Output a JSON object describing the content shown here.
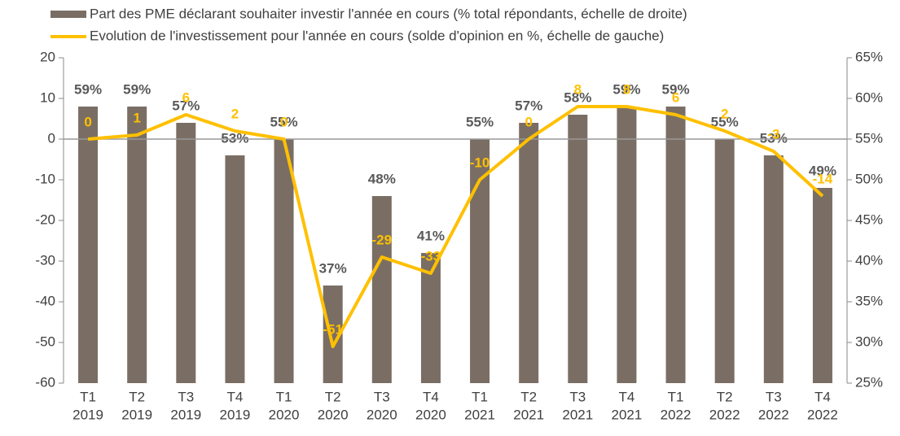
{
  "chart_data": {
    "type": "bar_line",
    "categories": [
      [
        "T1",
        "2019"
      ],
      [
        "T2",
        "2019"
      ],
      [
        "T3",
        "2019"
      ],
      [
        "T4",
        "2019"
      ],
      [
        "T1",
        "2020"
      ],
      [
        "T2",
        "2020"
      ],
      [
        "T3",
        "2020"
      ],
      [
        "T4",
        "2020"
      ],
      [
        "T1",
        "2021"
      ],
      [
        "T2",
        "2021"
      ],
      [
        "T3",
        "2021"
      ],
      [
        "T4",
        "2021"
      ],
      [
        "T1",
        "2022"
      ],
      [
        "T2",
        "2022"
      ],
      [
        "T3",
        "2022"
      ],
      [
        "T4",
        "2022"
      ]
    ],
    "series": [
      {
        "name": "Part des PME déclarant souhaiter investir l'année en cours (% total répondants, échelle de droite)",
        "color": "#7a6e64",
        "axis": "y2",
        "values": [
          59,
          59,
          57,
          53,
          55,
          37,
          48,
          41,
          55,
          57,
          58,
          59,
          59,
          55,
          53,
          49
        ],
        "value_labels": [
          "59%",
          "59%",
          "57%",
          "53%",
          "55%",
          "37%",
          "48%",
          "41%",
          "55%",
          "57%",
          "58%",
          "59%",
          "59%",
          "55%",
          "53%",
          "49%"
        ]
      },
      {
        "name": "Evolution de l'investissement pour l'année en cours (solde d'opinion en %, échelle de gauche)",
        "color": "#ffc000",
        "values": [
          0,
          1,
          6,
          2,
          0,
          -51,
          -29,
          -33,
          -10,
          0,
          8,
          8,
          6,
          2,
          -3,
          -14
        ]
      }
    ],
    "ylim": [
      -60,
      20
    ],
    "yticks": [
      -60,
      -50,
      -40,
      -30,
      -20,
      -10,
      0,
      10,
      20
    ],
    "y2lim": [
      25,
      65
    ],
    "y2ticks": [
      {
        "value": 25,
        "label": "25%"
      },
      {
        "value": 30,
        "label": "30%"
      },
      {
        "value": 35,
        "label": "35%"
      },
      {
        "value": 40,
        "label": "40%"
      },
      {
        "value": 45,
        "label": "45%"
      },
      {
        "value": 50,
        "label": "50%"
      },
      {
        "value": 55,
        "label": "55%"
      },
      {
        "value": 60,
        "label": "60%"
      },
      {
        "value": 65,
        "label": "65%"
      }
    ]
  }
}
